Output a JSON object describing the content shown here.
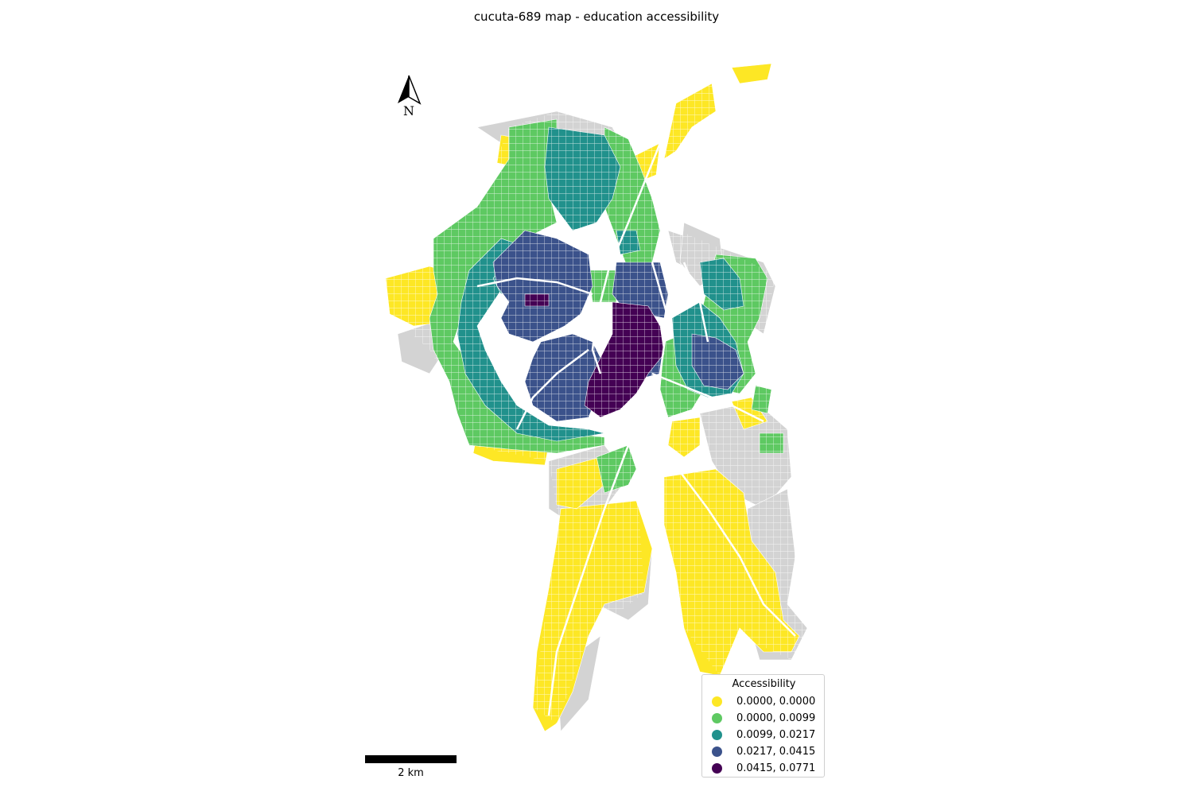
{
  "title": "cucuta-689 map - education accessibility",
  "north_label": "N",
  "scale_label": "2 km",
  "legend": {
    "title": "Accessibility",
    "items": [
      {
        "label": "0.0000, 0.0000",
        "color": "#fde725"
      },
      {
        "label": "0.0000, 0.0099",
        "color": "#5ec962"
      },
      {
        "label": "0.0099, 0.0217",
        "color": "#21918c"
      },
      {
        "label": "0.0217, 0.0415",
        "color": "#3b528b"
      },
      {
        "label": "0.0415, 0.0771",
        "color": "#440154"
      }
    ]
  },
  "no_data_color": "#d3d3d3"
}
